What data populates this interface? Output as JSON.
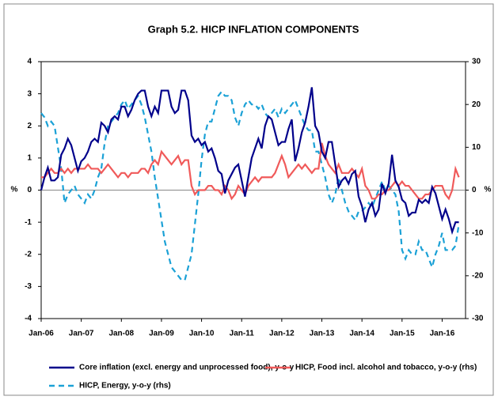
{
  "chart_data": {
    "type": "line",
    "title": "Graph 5.2. HICP INFLATION COMPONENTS",
    "y_label": "%",
    "y2_label": "%",
    "categories": [
      "Jan-06",
      null,
      null,
      null,
      null,
      null,
      null,
      null,
      null,
      null,
      null,
      null,
      "Jan-07",
      null,
      null,
      null,
      null,
      null,
      null,
      null,
      null,
      null,
      null,
      null,
      "Jan-08",
      null,
      null,
      null,
      null,
      null,
      null,
      null,
      null,
      null,
      null,
      null,
      "Jan-09",
      null,
      null,
      null,
      null,
      null,
      null,
      null,
      null,
      null,
      null,
      null,
      "Jan-10",
      null,
      null,
      null,
      null,
      null,
      null,
      null,
      null,
      null,
      null,
      null,
      "Jan-11",
      null,
      null,
      null,
      null,
      null,
      null,
      null,
      null,
      null,
      null,
      null,
      "Jan-12",
      null,
      null,
      null,
      null,
      null,
      null,
      null,
      null,
      null,
      null,
      null,
      "Jan-13",
      null,
      null,
      null,
      null,
      null,
      null,
      null,
      null,
      null,
      null,
      null,
      "Jan-14",
      null,
      null,
      null,
      null,
      null,
      null,
      null,
      null,
      null,
      null,
      null,
      "Jan-15",
      null,
      null,
      null,
      null,
      null,
      null,
      null,
      null,
      null,
      null,
      null,
      "Jan-16",
      null,
      null,
      null,
      null,
      null
    ],
    "ylim": [
      -4,
      4
    ],
    "yticks": [
      -4,
      -3,
      -2,
      -1,
      0,
      1,
      2,
      3,
      4
    ],
    "y2lim": [
      -30,
      30
    ],
    "y2ticks": [
      -30,
      -20,
      -10,
      0,
      10,
      20,
      30
    ],
    "series": [
      {
        "name": "Core inflation (excl. energy and unprocessed food), y-o-y",
        "color": "#00008b",
        "dash": false,
        "values": [
          0,
          0.4,
          0.7,
          0.3,
          0.3,
          0.4,
          1.1,
          1.3,
          1.6,
          1.4,
          1.0,
          0.6,
          0.9,
          1.0,
          1.2,
          1.5,
          1.6,
          1.5,
          2.1,
          2.0,
          1.8,
          2.2,
          2.3,
          2.2,
          2.6,
          2.6,
          2.3,
          2.5,
          2.8,
          3.0,
          3.1,
          3.1,
          2.6,
          2.3,
          2.6,
          2.4,
          3.1,
          3.1,
          3.1,
          2.6,
          2.4,
          2.5,
          3.1,
          3.1,
          2.8,
          1.7,
          1.5,
          1.6,
          1.4,
          1.5,
          1.2,
          1.3,
          1.0,
          0.6,
          0.5,
          -0.1,
          0.3,
          0.5,
          0.7,
          0.8,
          0.3,
          -0.2,
          0.4,
          1.0,
          1.3,
          1.6,
          1.3,
          2.0,
          2.3,
          2.2,
          1.8,
          1.4,
          1.5,
          1.5,
          1.9,
          2.2,
          0.9,
          1.3,
          1.8,
          2.1,
          2.6,
          3.2,
          2.0,
          1.8,
          1.2,
          1.0,
          1.5,
          1.5,
          0.8,
          0.1,
          0.3,
          0.4,
          0.2,
          0.5,
          0.6,
          -0.2,
          -0.5,
          -1.0,
          -0.6,
          -0.4,
          -0.8,
          -0.6,
          0.2,
          -0.1,
          0.2,
          1.1,
          0.3,
          0.1,
          -0.3,
          -0.4,
          -0.8,
          -0.7,
          -0.7,
          -0.3,
          -0.4,
          -0.3,
          -0.4,
          0.1,
          -0.1,
          -0.5,
          -0.9,
          -0.6,
          -0.9,
          -1.3,
          -1.0,
          -1.0
        ]
      },
      {
        "name": "HICP, Food incl. alcohol and tobacco, y-o-y (rhs)",
        "color": "#f05a5a",
        "dash": false,
        "axis": "y2",
        "values": [
          3,
          3,
          4,
          5,
          4,
          4,
          5,
          4,
          5,
          4,
          5,
          5,
          5,
          5,
          6,
          5,
          5,
          5,
          4,
          5,
          6,
          5,
          4,
          3,
          4,
          4,
          3,
          4,
          4,
          4,
          5,
          5,
          4,
          6,
          7,
          6,
          9,
          8,
          7,
          6,
          7,
          8,
          6,
          7,
          7,
          1,
          -1,
          0,
          0,
          0,
          1,
          1,
          0,
          0,
          -1,
          1,
          0,
          -2,
          -1,
          1,
          0,
          -1,
          1,
          2,
          3,
          2,
          3,
          3,
          3,
          3,
          4,
          6,
          8,
          6,
          3,
          4,
          5,
          6,
          5,
          6,
          5,
          4,
          5,
          5,
          11,
          8,
          6,
          5,
          4,
          6,
          4,
          4,
          4,
          5,
          4,
          3,
          5,
          1,
          0,
          -2,
          -2,
          -1,
          -1,
          0,
          0,
          1,
          2,
          1,
          2,
          1,
          1,
          0,
          -1,
          -2,
          -2,
          -1,
          -1,
          0,
          1,
          1,
          1,
          -1,
          -2,
          0,
          5,
          3
        ]
      },
      {
        "name": "HICP, Energy, y-o-y (rhs)",
        "color": "#1ba1d6",
        "dash": true,
        "axis": "y2",
        "values": [
          18,
          17,
          15,
          16,
          15,
          10,
          5,
          -3,
          -1,
          0,
          1,
          -1,
          -2,
          -3,
          -1,
          -2,
          0,
          3,
          5,
          11,
          15,
          16,
          17,
          18,
          20,
          21,
          19,
          20,
          21,
          22,
          20,
          17,
          13,
          9,
          3,
          -2,
          -7,
          -12,
          -15,
          -18,
          -19,
          -20,
          -21,
          -21,
          -18,
          -15,
          -8,
          -1,
          7,
          13,
          16,
          16,
          19,
          22,
          23,
          22,
          22,
          21,
          17,
          15,
          18,
          20,
          21,
          20,
          20,
          19,
          20,
          18,
          17,
          18,
          19,
          17,
          19,
          18,
          19,
          20,
          21,
          19,
          17,
          15,
          14,
          14,
          9,
          9,
          6,
          3,
          -1,
          -3,
          -1,
          3,
          0,
          -3,
          -5,
          -6,
          -7,
          -5,
          -5,
          -4,
          -3,
          -4,
          -2,
          0,
          2,
          0,
          1,
          0,
          -1,
          -5,
          -14,
          -16,
          -14,
          -15,
          -15,
          -12,
          -14,
          -14,
          -16,
          -18,
          -15,
          -13,
          -10,
          -14,
          -14,
          -14,
          -13,
          -8
        ]
      }
    ]
  }
}
